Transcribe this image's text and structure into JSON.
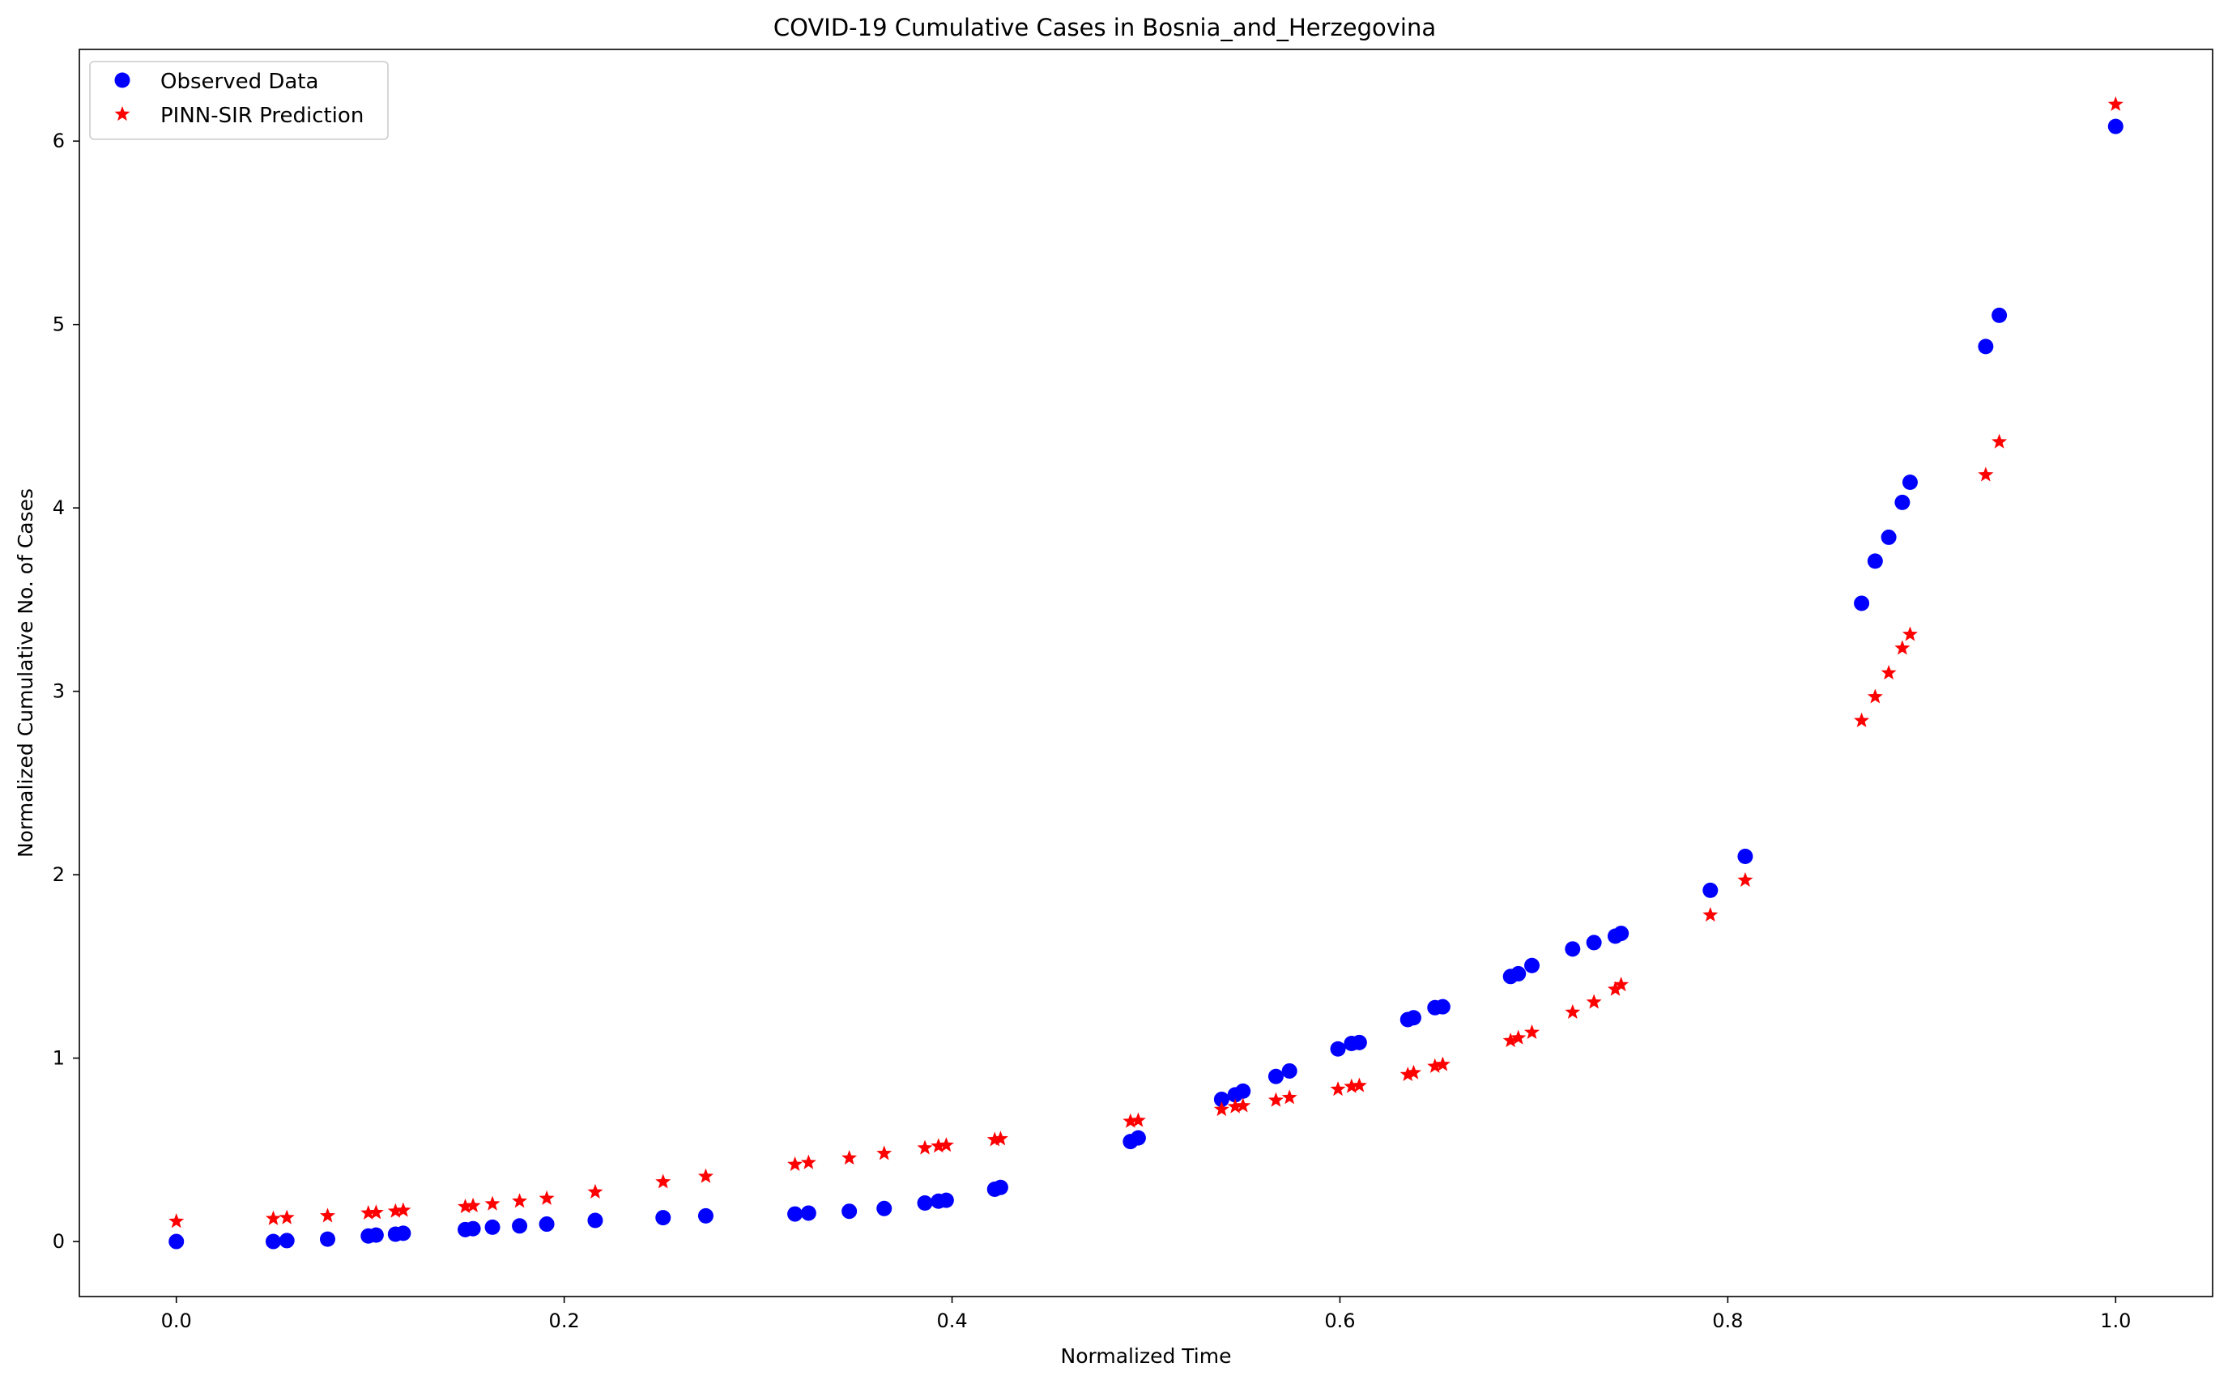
{
  "chart_data": {
    "type": "scatter",
    "title": "COVID-19 Cumulative Cases in Bosnia_and_Herzegovina",
    "xlabel": "Normalized Time",
    "ylabel": "Normalized Cumulative No. of Cases",
    "xlim": [
      -0.05,
      1.05
    ],
    "ylim": [
      -0.3,
      6.5
    ],
    "xticks": [
      0.0,
      0.2,
      0.4,
      0.6,
      0.8,
      1.0
    ],
    "xtick_labels": [
      "0.0",
      "0.2",
      "0.4",
      "0.6",
      "0.8",
      "1.0"
    ],
    "yticks": [
      0,
      1,
      2,
      3,
      4,
      5,
      6
    ],
    "ytick_labels": [
      "0",
      "1",
      "2",
      "3",
      "4",
      "5",
      "6"
    ],
    "grid": false,
    "legend_position": "top-left",
    "series": [
      {
        "name": "Observed Data",
        "marker": "circle",
        "color": "#0000ff",
        "x": [
          0.0,
          0.05,
          0.057,
          0.078,
          0.099,
          0.103,
          0.113,
          0.117,
          0.149,
          0.153,
          0.163,
          0.177,
          0.191,
          0.216,
          0.251,
          0.273,
          0.319,
          0.326,
          0.347,
          0.365,
          0.386,
          0.393,
          0.397,
          0.422,
          0.425,
          0.492,
          0.496,
          0.539,
          0.546,
          0.55,
          0.567,
          0.574,
          0.599,
          0.606,
          0.61,
          0.635,
          0.638,
          0.649,
          0.653,
          0.688,
          0.692,
          0.699,
          0.72,
          0.731,
          0.742,
          0.745,
          0.791,
          0.809,
          0.869,
          0.876,
          0.883,
          0.89,
          0.894,
          0.933,
          0.94,
          1.0
        ],
        "y": [
          0.0,
          0.0,
          0.005,
          0.013,
          0.03,
          0.035,
          0.04,
          0.045,
          0.065,
          0.07,
          0.078,
          0.085,
          0.095,
          0.115,
          0.13,
          0.14,
          0.15,
          0.155,
          0.165,
          0.18,
          0.21,
          0.22,
          0.225,
          0.285,
          0.295,
          0.545,
          0.565,
          0.775,
          0.8,
          0.82,
          0.9,
          0.93,
          1.05,
          1.08,
          1.085,
          1.21,
          1.22,
          1.275,
          1.28,
          1.445,
          1.46,
          1.505,
          1.595,
          1.63,
          1.665,
          1.68,
          1.915,
          2.1,
          3.48,
          3.71,
          3.84,
          4.03,
          4.14,
          4.88,
          5.05,
          6.08
        ]
      },
      {
        "name": "PINN-SIR Prediction",
        "marker": "star",
        "color": "#ff0000",
        "x": [
          0.0,
          0.05,
          0.057,
          0.078,
          0.099,
          0.103,
          0.113,
          0.117,
          0.149,
          0.153,
          0.163,
          0.177,
          0.191,
          0.216,
          0.251,
          0.273,
          0.319,
          0.326,
          0.347,
          0.365,
          0.386,
          0.393,
          0.397,
          0.422,
          0.425,
          0.492,
          0.496,
          0.539,
          0.546,
          0.55,
          0.567,
          0.574,
          0.599,
          0.606,
          0.61,
          0.635,
          0.638,
          0.649,
          0.653,
          0.688,
          0.692,
          0.699,
          0.72,
          0.731,
          0.742,
          0.745,
          0.791,
          0.809,
          0.869,
          0.876,
          0.883,
          0.89,
          0.894,
          0.933,
          0.94,
          1.0
        ],
        "y": [
          0.11,
          0.125,
          0.13,
          0.14,
          0.155,
          0.158,
          0.165,
          0.17,
          0.19,
          0.195,
          0.205,
          0.22,
          0.235,
          0.27,
          0.325,
          0.355,
          0.42,
          0.43,
          0.455,
          0.48,
          0.51,
          0.52,
          0.525,
          0.555,
          0.56,
          0.655,
          0.66,
          0.72,
          0.735,
          0.74,
          0.77,
          0.785,
          0.83,
          0.845,
          0.85,
          0.91,
          0.92,
          0.955,
          0.965,
          1.095,
          1.11,
          1.14,
          1.25,
          1.305,
          1.375,
          1.4,
          1.78,
          1.97,
          2.84,
          2.97,
          3.1,
          3.235,
          3.31,
          4.18,
          4.36,
          6.2
        ]
      }
    ]
  }
}
